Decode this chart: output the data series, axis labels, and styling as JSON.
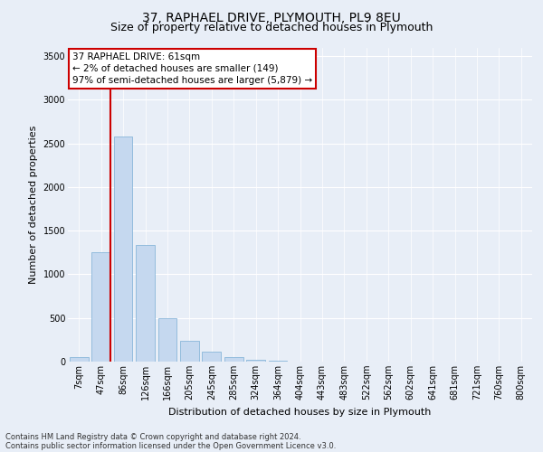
{
  "title1": "37, RAPHAEL DRIVE, PLYMOUTH, PL9 8EU",
  "title2": "Size of property relative to detached houses in Plymouth",
  "xlabel": "Distribution of detached houses by size in Plymouth",
  "ylabel": "Number of detached properties",
  "bar_labels": [
    "7sqm",
    "47sqm",
    "86sqm",
    "126sqm",
    "166sqm",
    "205sqm",
    "245sqm",
    "285sqm",
    "324sqm",
    "364sqm",
    "404sqm",
    "443sqm",
    "483sqm",
    "522sqm",
    "562sqm",
    "602sqm",
    "641sqm",
    "681sqm",
    "721sqm",
    "760sqm",
    "800sqm"
  ],
  "bar_heights": [
    50,
    1250,
    2580,
    1340,
    500,
    235,
    115,
    50,
    25,
    15,
    5,
    0,
    0,
    0,
    0,
    0,
    0,
    0,
    0,
    0,
    0
  ],
  "bar_color": "#c5d8ef",
  "bar_edge_color": "#7aadd4",
  "ylim": [
    0,
    3600
  ],
  "yticks": [
    0,
    500,
    1000,
    1500,
    2000,
    2500,
    3000,
    3500
  ],
  "vline_x": 1.42,
  "annotation_title": "37 RAPHAEL DRIVE: 61sqm",
  "annotation_line1": "← 2% of detached houses are smaller (149)",
  "annotation_line2": "97% of semi-detached houses are larger (5,879) →",
  "footer1": "Contains HM Land Registry data © Crown copyright and database right 2024.",
  "footer2": "Contains public sector information licensed under the Open Government Licence v3.0.",
  "bg_color": "#e8eef7",
  "plot_bg_color": "#e8eef7",
  "annotation_box_color": "#ffffff",
  "annotation_box_edge_color": "#cc0000",
  "vline_color": "#cc0000",
  "title1_fontsize": 10,
  "title2_fontsize": 9,
  "xlabel_fontsize": 8,
  "ylabel_fontsize": 8,
  "tick_fontsize": 7,
  "footer_fontsize": 6,
  "ann_fontsize": 7.5
}
